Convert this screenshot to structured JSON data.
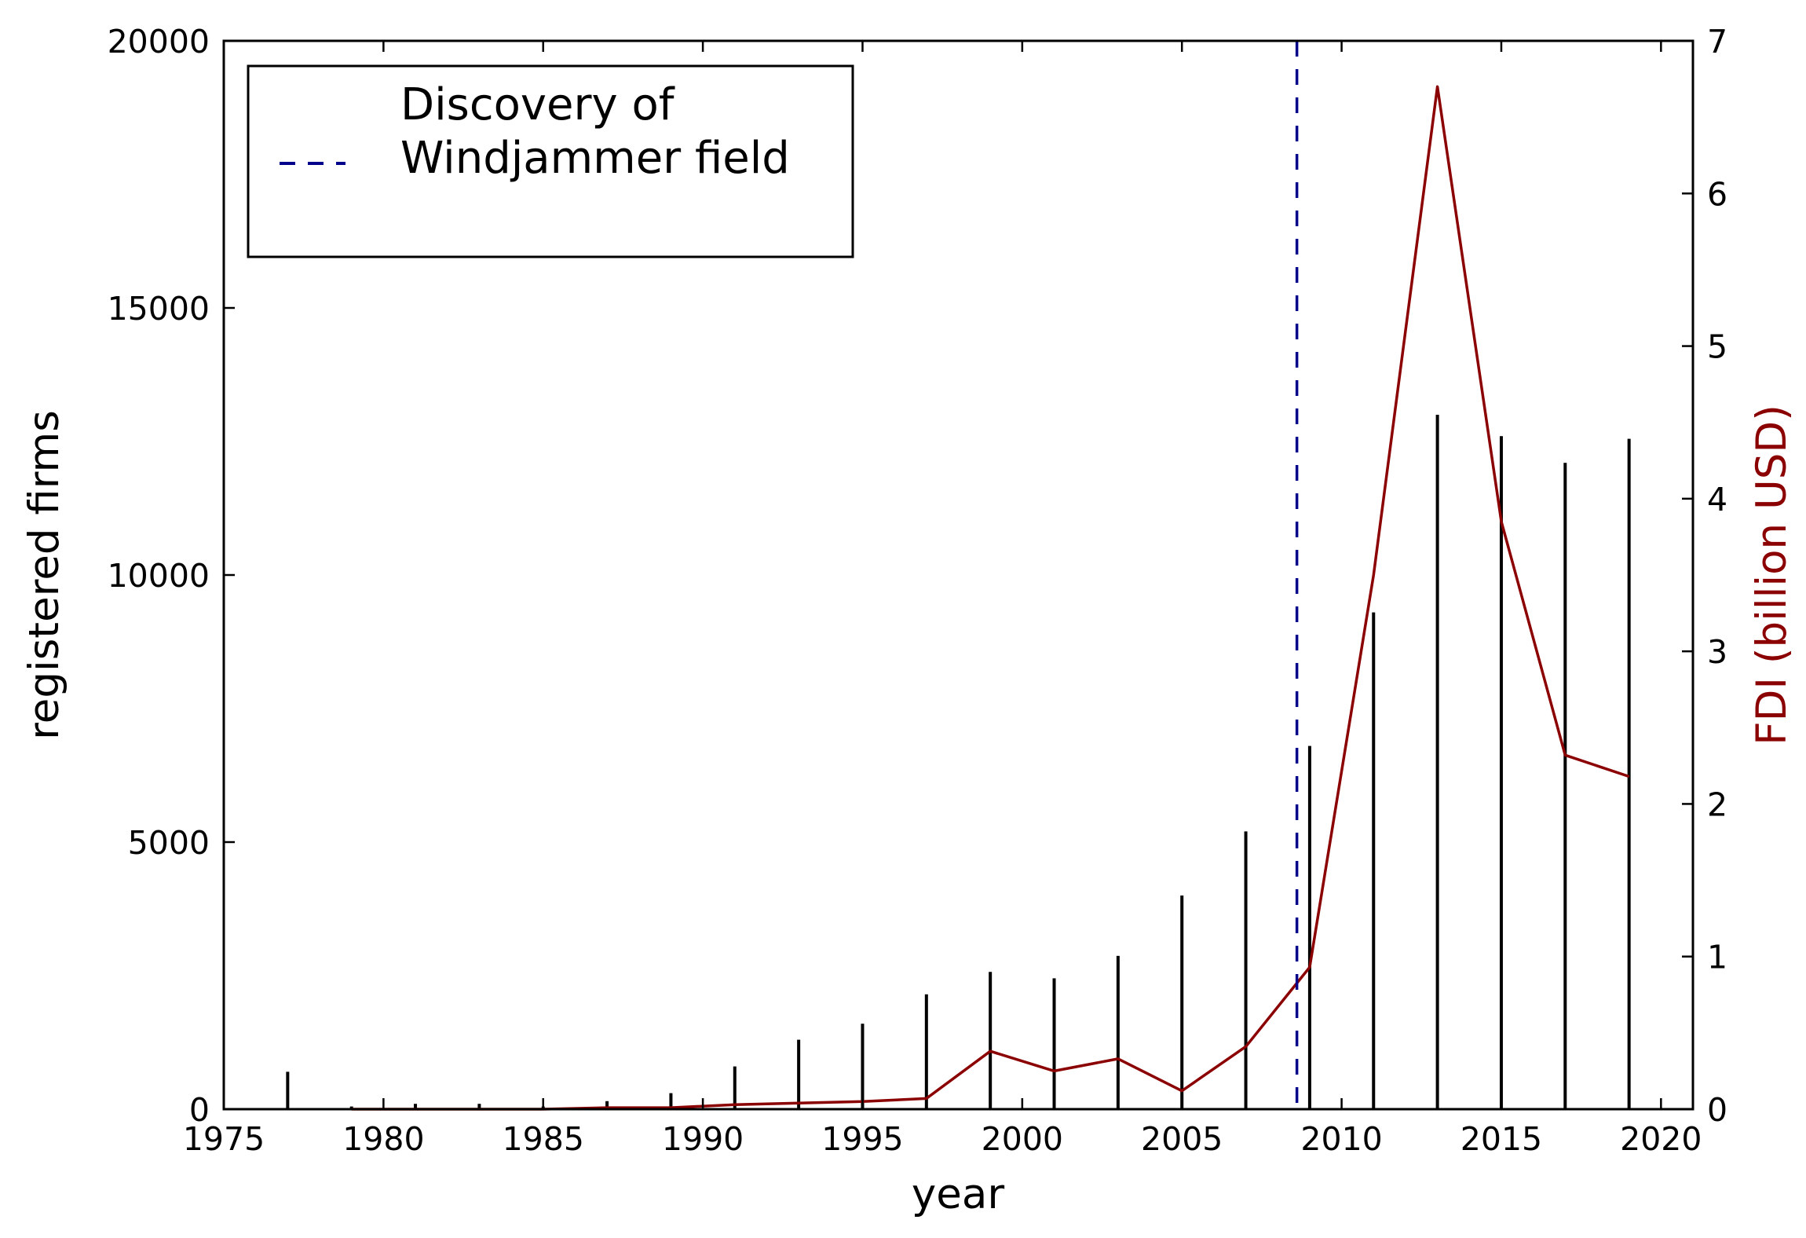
{
  "chart_data": {
    "type": "bar",
    "title": "",
    "xlabel": "year",
    "ylabel": "registered firms",
    "y2label": "FDI (billion USD)",
    "xlim": [
      1975,
      2021
    ],
    "ylim": [
      0,
      20000
    ],
    "y2lim": [
      0,
      7
    ],
    "x_ticks": [
      1975,
      1980,
      1985,
      1990,
      1995,
      2000,
      2005,
      2010,
      2015,
      2020
    ],
    "y_ticks": [
      0,
      5000,
      10000,
      15000,
      20000
    ],
    "y2_ticks": [
      0,
      1,
      2,
      3,
      4,
      5,
      6,
      7
    ],
    "grid": false,
    "legend_position": "top-left",
    "colors": {
      "firms": "#000000",
      "fdi": "#8b0000",
      "discovery": "#00008b"
    },
    "series": [
      {
        "type": "bar",
        "axis": "left",
        "x": [
          1977,
          1979,
          1981,
          1983,
          1985,
          1987,
          1989,
          1991,
          1993,
          1995,
          1997,
          1999,
          2001,
          2003,
          2005,
          2007,
          2009,
          2011,
          2013,
          2015,
          2017,
          2019
        ],
        "values": [
          700,
          50,
          100,
          100,
          50,
          150,
          300,
          800,
          1300,
          1600,
          2150,
          2570,
          2450,
          2870,
          4000,
          5200,
          6800,
          9300,
          13000,
          12600,
          12100,
          12550
        ]
      },
      {
        "type": "line",
        "axis": "right",
        "x": [
          1979,
          1981,
          1983,
          1985,
          1987,
          1989,
          1991,
          1993,
          1995,
          1997,
          1999,
          2001,
          2003,
          2005,
          2007,
          2009,
          2011,
          2013,
          2015,
          2017,
          2019
        ],
        "values": [
          0.0,
          0.0,
          0.0,
          0.0,
          0.01,
          0.01,
          0.03,
          0.04,
          0.05,
          0.07,
          0.38,
          0.25,
          0.33,
          0.12,
          0.41,
          0.93,
          3.5,
          6.7,
          3.85,
          2.32,
          2.18
        ]
      }
    ],
    "annotations": [
      {
        "type": "vline",
        "x": 2008.6,
        "style": "dashed",
        "label": [
          "Discovery of",
          "Windjammer field"
        ]
      }
    ]
  }
}
